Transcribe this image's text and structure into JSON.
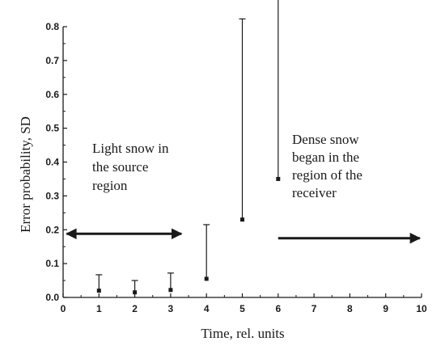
{
  "chart_data": {
    "type": "scatter",
    "xlabel": "Time, rel. units",
    "ylabel": "Error probability, SD",
    "xlim": [
      0,
      10
    ],
    "ylim": [
      0,
      0.8
    ],
    "x_ticks": [
      0,
      1,
      2,
      3,
      4,
      5,
      6,
      7,
      8,
      9,
      10
    ],
    "x_tick_labels": [
      "0",
      "1",
      "2",
      "3",
      "4",
      "5",
      "6",
      "7",
      "8",
      "9",
      "10"
    ],
    "y_ticks": [
      0,
      0.1,
      0.2,
      0.3,
      0.4,
      0.5,
      0.6,
      0.7,
      0.8
    ],
    "y_tick_labels": [
      "0.0",
      "0.1",
      "0.2",
      "0.3",
      "0.4",
      "0.5",
      "0.6",
      "0.7",
      "0.8"
    ],
    "grid": false,
    "legend": "none",
    "points": [
      {
        "x": 1,
        "y": 0.02,
        "err_low": 0,
        "err_high": 0.047
      },
      {
        "x": 2,
        "y": 0.015,
        "err_low": 0,
        "err_high": 0.035
      },
      {
        "x": 3,
        "y": 0.022,
        "err_low": 0,
        "err_high": 0.05
      },
      {
        "x": 4,
        "y": 0.055,
        "err_low": 0,
        "err_high": 0.16
      },
      {
        "x": 5,
        "y": 0.23,
        "err_low": 0,
        "err_high": 0.593
      },
      {
        "x": 6,
        "y": 0.35,
        "err_low": 0,
        "err_high": 0.785
      }
    ],
    "annotations": [
      {
        "lines": [
          "Light snow in",
          "the source",
          "region"
        ]
      },
      {
        "lines": [
          "Dense snow",
          "began in the",
          "region of the",
          "receiver"
        ]
      }
    ],
    "arrows": [
      {
        "from_x": 0.1,
        "to_x": 3.3,
        "y": 0.188,
        "heads": "both"
      },
      {
        "from_x": 6.0,
        "to_x": 9.95,
        "y": 0.175,
        "heads": "end"
      }
    ],
    "colors": {
      "ink": "#1a1a1a",
      "background": "#ffffff"
    }
  }
}
